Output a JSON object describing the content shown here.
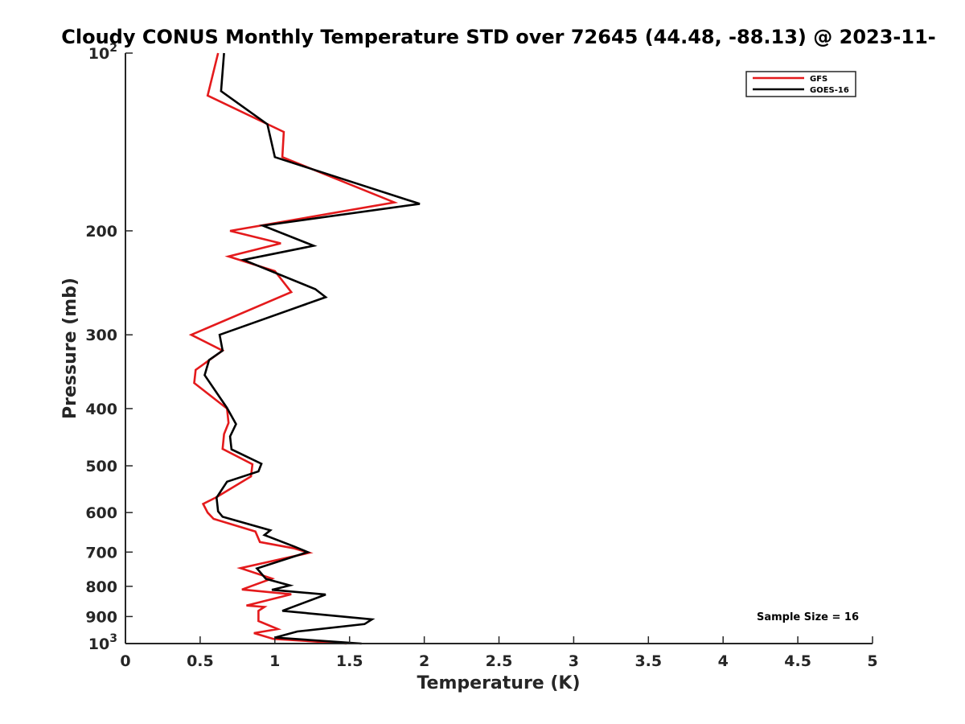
{
  "chart_data": {
    "type": "line",
    "title": "Cloudy CONUS Monthly Temperature STD over 72645 (44.48, -88.13) @ 2023-11-",
    "xlabel": "Temperature (K)",
    "ylabel": "Pressure (mb)",
    "xlim": [
      0,
      5
    ],
    "ylim": [
      100,
      1000
    ],
    "y_scale": "log",
    "y_reversed": true,
    "x_ticks": [
      "0",
      "0.5",
      "1",
      "1.5",
      "2",
      "2.5",
      "3",
      "3.5",
      "4",
      "4.5",
      "5"
    ],
    "y_tick_values": [
      100,
      200,
      300,
      400,
      500,
      600,
      700,
      800,
      900,
      1000
    ],
    "y_tick_labels": [
      {
        "base": "10",
        "exp": "2"
      },
      {
        "base": "200",
        "exp": ""
      },
      {
        "base": "300",
        "exp": ""
      },
      {
        "base": "400",
        "exp": ""
      },
      {
        "base": "500",
        "exp": ""
      },
      {
        "base": "600",
        "exp": ""
      },
      {
        "base": "700",
        "exp": ""
      },
      {
        "base": "800",
        "exp": ""
      },
      {
        "base": "900",
        "exp": ""
      },
      {
        "base": "10",
        "exp": "3"
      }
    ],
    "grid": false,
    "legend_position": "top-right",
    "annotation": "Sample Size = 16",
    "series": [
      {
        "name": "GFS",
        "color": "#e41a1c",
        "points": [
          [
            0.62,
            100
          ],
          [
            0.55,
            118
          ],
          [
            1.06,
            136
          ],
          [
            1.05,
            150
          ],
          [
            1.8,
            179
          ],
          [
            0.7,
            200
          ],
          [
            1.04,
            210
          ],
          [
            0.69,
            221
          ],
          [
            1.0,
            234
          ],
          [
            1.11,
            254
          ],
          [
            0.44,
            300
          ],
          [
            0.65,
            319
          ],
          [
            0.47,
            344
          ],
          [
            0.46,
            362
          ],
          [
            0.68,
            400
          ],
          [
            0.69,
            423
          ],
          [
            0.66,
            442
          ],
          [
            0.65,
            468
          ],
          [
            0.85,
            497
          ],
          [
            0.84,
            521
          ],
          [
            0.61,
            565
          ],
          [
            0.52,
            580
          ],
          [
            0.55,
            600
          ],
          [
            0.59,
            615
          ],
          [
            0.87,
            646
          ],
          [
            0.9,
            673
          ],
          [
            1.13,
            690
          ],
          [
            1.23,
            702
          ],
          [
            0.77,
            745
          ],
          [
            0.98,
            776
          ],
          [
            0.78,
            810
          ],
          [
            1.11,
            825
          ],
          [
            0.81,
            862
          ],
          [
            0.93,
            867
          ],
          [
            0.89,
            880
          ],
          [
            0.89,
            916
          ],
          [
            1.02,
            945
          ],
          [
            0.86,
            960
          ],
          [
            0.99,
            982
          ],
          [
            1.48,
            1000
          ]
        ]
      },
      {
        "name": "GOES-16",
        "color": "#000000",
        "points": [
          [
            0.66,
            100
          ],
          [
            0.64,
            116
          ],
          [
            0.95,
            132
          ],
          [
            1.0,
            150
          ],
          [
            1.97,
            180
          ],
          [
            0.92,
            196
          ],
          [
            1.26,
            212
          ],
          [
            0.79,
            224
          ],
          [
            1.27,
            251
          ],
          [
            1.34,
            259
          ],
          [
            0.63,
            300
          ],
          [
            0.65,
            319
          ],
          [
            0.56,
            331
          ],
          [
            0.53,
            351
          ],
          [
            0.68,
            399
          ],
          [
            0.74,
            425
          ],
          [
            0.7,
            446
          ],
          [
            0.71,
            469
          ],
          [
            0.91,
            496
          ],
          [
            0.89,
            511
          ],
          [
            0.68,
            532
          ],
          [
            0.61,
            566
          ],
          [
            0.62,
            597
          ],
          [
            0.65,
            610
          ],
          [
            0.97,
            643
          ],
          [
            0.93,
            655
          ],
          [
            1.13,
            685
          ],
          [
            1.22,
            700
          ],
          [
            0.88,
            746
          ],
          [
            0.94,
            777
          ],
          [
            1.1,
            797
          ],
          [
            0.98,
            811
          ],
          [
            1.34,
            826
          ],
          [
            1.05,
            880
          ],
          [
            1.65,
            910
          ],
          [
            1.6,
            927
          ],
          [
            1.15,
            954
          ],
          [
            1.0,
            977
          ],
          [
            1.58,
            1000
          ]
        ]
      }
    ]
  }
}
